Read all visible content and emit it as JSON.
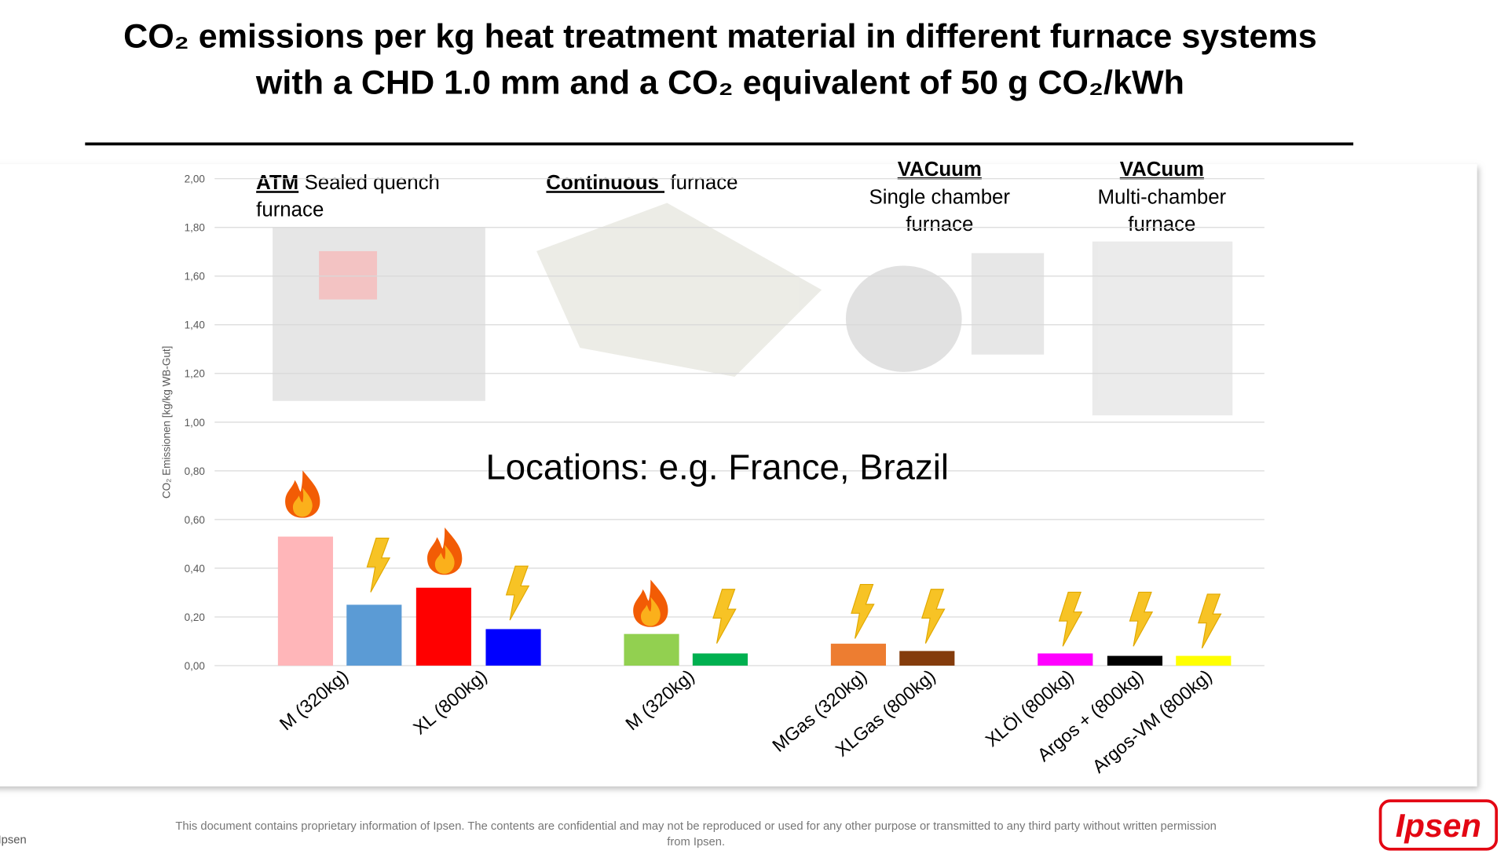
{
  "slide": {
    "title_lines": [
      "CO₂ emissions per kg heat treatment material in different furnace systems",
      "with a CHD 1.0 mm and a CO₂ equivalent of 50 g CO₂/kWh"
    ],
    "sections": [
      {
        "bold": "ATM",
        "text": [
          "Sealed quench",
          "furnace"
        ]
      },
      {
        "bold": "Continuous ",
        "text": [
          "furnace"
        ]
      },
      {
        "bold": "VACuum",
        "text": [
          "Single chamber",
          "furnace"
        ]
      },
      {
        "bold": "VACuum",
        "text": [
          "Multi-chamber",
          "furnace"
        ]
      }
    ],
    "note": "Locations: e.g. France, Brazil",
    "footer": [
      "This document contains proprietary information of Ipsen. The contents are confidential and may not be reproduced or used for any other purpose or transmitted to any third party without written permission",
      "from Ipsen."
    ],
    "footer_left": "Ipsen",
    "logo": "Ipsen"
  },
  "chart_data": {
    "type": "bar",
    "y_label": "CO₂ Emissionen [kg/kg WB-Gut]",
    "categories": [
      "M (320kg)",
      null,
      "XL (800kg)",
      null,
      "M (320kg)",
      null,
      "MGas (320kg)",
      "XLGas (800kg)",
      "XLÖl (800kg)",
      "Argos + (800kg)",
      "Argos-VM (800kg)"
    ],
    "values": [
      0.53,
      0.25,
      0.32,
      0.15,
      0.13,
      0.05,
      0.09,
      0.06,
      0.05,
      0.04,
      0.04
    ],
    "colors": [
      "#ffb6b9",
      "#5b9bd5",
      "#ff0000",
      "#0000ff",
      "#92d050",
      "#00b050",
      "#ed7d31",
      "#843c0c",
      "#ff00ff",
      "#000000",
      "#ffff00"
    ],
    "ylim": [
      0,
      2
    ],
    "yticks": [
      {
        "value": 0,
        "label": "0,00"
      },
      {
        "value": 0.2,
        "label": "0,20"
      },
      {
        "value": 0.4,
        "label": "0,40"
      },
      {
        "value": 0.6,
        "label": "0,60"
      },
      {
        "value": 0.8,
        "label": "0,80"
      },
      {
        "value": 1,
        "label": "1,00"
      },
      {
        "value": 1.2,
        "label": "1,20"
      },
      {
        "value": 1.4,
        "label": "1,40"
      },
      {
        "value": 1.6,
        "label": "1,60"
      },
      {
        "value": 1.8,
        "label": "1,80"
      },
      {
        "value": 2,
        "label": "2,00"
      }
    ],
    "grid": true
  }
}
